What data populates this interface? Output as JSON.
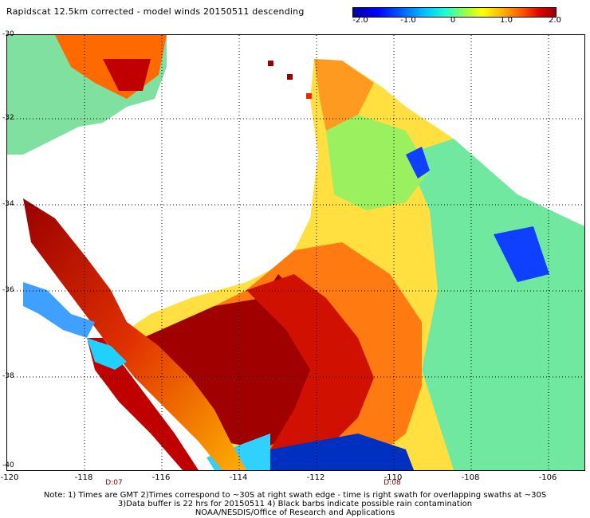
{
  "header": {
    "title": "Rapidscat 12.5km corrected - model winds 20150511 descending"
  },
  "colorbar": {
    "ticks": [
      "-2.0",
      "-1.0",
      "0",
      "1.0",
      "2.0"
    ],
    "range": [
      -2.0,
      2.0
    ]
  },
  "map": {
    "lat_labels": [
      "-30",
      "-32",
      "-34",
      "-36",
      "-38",
      "-40"
    ],
    "lon_labels": [
      "-120",
      "-118",
      "-116",
      "-114",
      "-112",
      "-110",
      "-108",
      "-106"
    ],
    "times": [
      "D:07",
      "D:08"
    ]
  },
  "footer": {
    "line1": "Note: 1) Times are GMT 2)Times correspond to ~30S at right swath edge - time is right swath for overlapping swaths at ~30S",
    "line2": "3)Data buffer is 22 hrs for 20150511 4) Black barbs indicate possible rain contamination",
    "line3": "NOAA/NESDIS/Office of Research and Applications"
  }
}
